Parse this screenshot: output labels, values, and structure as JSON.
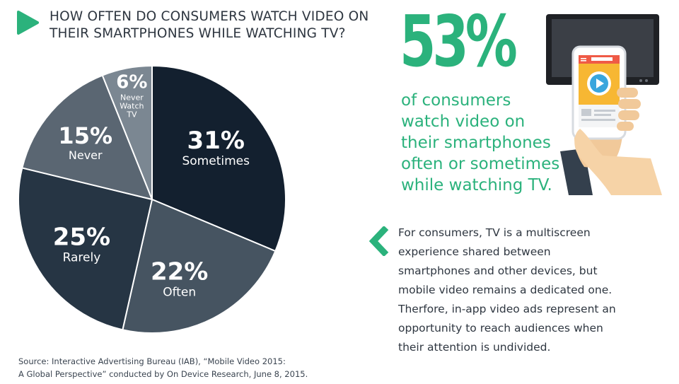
{
  "header": {
    "title_line1": "HOW OFTEN DO CONSUMERS WATCH VIDEO ON",
    "title_line2": "THEIR SMARTPHONES WHILE WATCHING TV?"
  },
  "chart_data": {
    "type": "pie",
    "title": "HOW OFTEN DO CONSUMERS WATCH VIDEO ON THEIR SMARTPHONES WHILE WATCHING TV?",
    "slices": [
      {
        "label": "Sometimes",
        "value": 31,
        "display": "31%",
        "label_lines": [
          "Sometimes"
        ],
        "color": "#13202f"
      },
      {
        "label": "Often",
        "value": 22,
        "display": "22%",
        "label_lines": [
          "Often"
        ],
        "color": "#465461"
      },
      {
        "label": "Rarely",
        "value": 25,
        "display": "25%",
        "label_lines": [
          "Rarely"
        ],
        "color": "#263544"
      },
      {
        "label": "Never",
        "value": 15,
        "display": "15%",
        "label_lines": [
          "Never"
        ],
        "color": "#5a6672"
      },
      {
        "label": "Never Watch TV",
        "value": 6,
        "display": "6%",
        "label_lines": [
          "Never",
          "Watch",
          "TV"
        ],
        "color": "#7b8792"
      }
    ]
  },
  "stat": {
    "value": "53%",
    "line1": "of consumers",
    "line2": "watch video on",
    "line3": "their smartphones",
    "line4": "often or sometimes",
    "line5": "while watching TV."
  },
  "quote": {
    "line1": "For consumers, TV is a multiscreen",
    "line2": "experience shared between",
    "line3": "smartphones and other devices, but",
    "line4": "mobile video remains a dedicated one.",
    "line5": "Therfore, in-app video ads represent an",
    "line6": "opportunity to reach audiences when",
    "line7": "their attention is undivided."
  },
  "source": {
    "line1": "Source: Interactive Advertising Bureau (IAB), “Mobile Video 2015:",
    "line2": "A Global Perspective” conducted by On Device Research, June 8, 2015."
  },
  "colors": {
    "accent": "#2bb27c",
    "text": "#2e3640"
  },
  "icons": {
    "title": "play-triangle-icon",
    "quote": "chevron-left-icon",
    "illustration": "tv-smartphone-hand-illustration"
  }
}
